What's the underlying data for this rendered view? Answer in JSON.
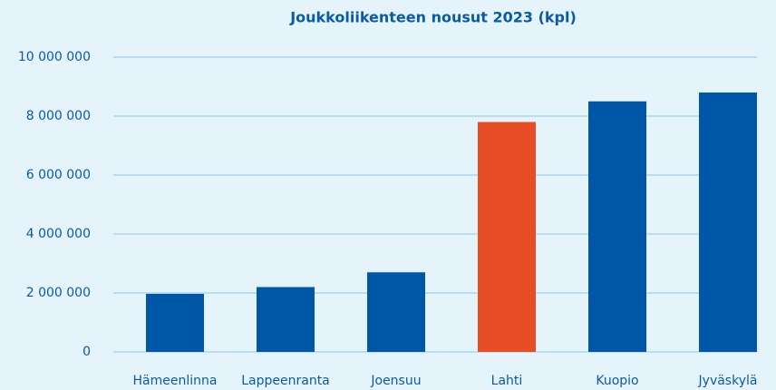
{
  "chart_data": {
    "type": "bar",
    "title": "Joukkoliikenteen nousut 2023 (kpl)",
    "categories": [
      "Hämeenlinna",
      "Lappeenranta",
      "Joensuu",
      "Lahti",
      "Kuopio",
      "Jyväskylä"
    ],
    "values": [
      1970000,
      2200000,
      2700000,
      7800000,
      8500000,
      8800000
    ],
    "colors": [
      "#0057a8",
      "#0057a8",
      "#0057a8",
      "#e84e25",
      "#0057a8",
      "#0057a8"
    ],
    "ylim": [
      0,
      10000000
    ],
    "yticks": [
      0,
      {
        "value": 2000000,
        "label": "2 000 000"
      },
      {
        "value": 4000000,
        "label": "4 000 000"
      },
      {
        "value": 6000000,
        "label": "6 000 000"
      },
      {
        "value": 8000000,
        "label": "8 000 000"
      },
      {
        "value": 10000000,
        "label": "10 000 000"
      }
    ],
    "grid": true
  }
}
